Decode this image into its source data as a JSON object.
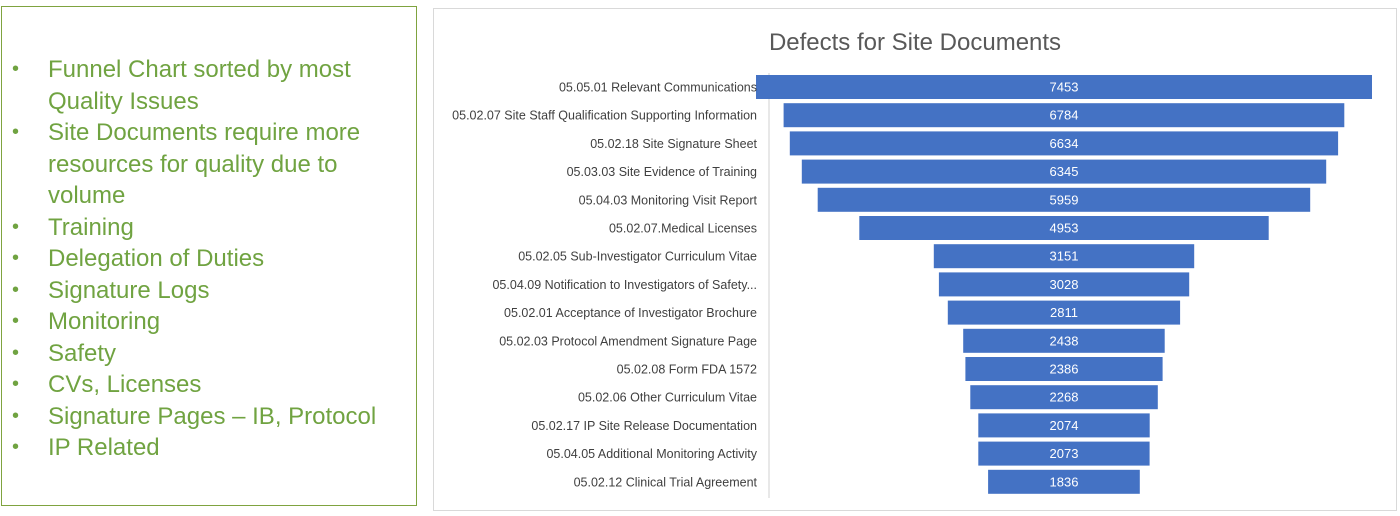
{
  "bullets": [
    "Funnel Chart sorted by most Quality Issues",
    "Site Documents require more resources for quality due to volume",
    "Training",
    "Delegation of Duties",
    "Signature Logs",
    "Monitoring",
    "Safety",
    "CVs,  Licenses",
    "Signature Pages – IB, Protocol",
    "IP Related"
  ],
  "colors": {
    "bullet_text": "#70a341",
    "panel_border": "#7fa33f",
    "bar_fill": "#4472c4"
  },
  "chart_data": {
    "type": "bar",
    "orientation": "horizontal-funnel",
    "title": "Defects for Site Documents",
    "categories": [
      "05.05.01 Relevant Communications",
      "05.02.07 Site Staff Qualification Supporting Information",
      "05.02.18 Site Signature Sheet",
      "05.03.03 Site Evidence of Training",
      "05.04.03 Monitoring Visit Report",
      "05.02.07.Medical Licenses",
      "05.02.05 Sub-Investigator Curriculum Vitae",
      "05.04.09 Notification to Investigators of Safety...",
      "05.02.01 Acceptance of Investigator Brochure",
      "05.02.03 Protocol Amendment Signature Page",
      "05.02.08 Form FDA 1572",
      "05.02.06 Other Curriculum Vitae",
      "05.02.17 IP Site Release Documentation",
      "05.04.05 Additional Monitoring Activity",
      "05.02.12 Clinical Trial Agreement"
    ],
    "values": [
      7453,
      6784,
      6634,
      6345,
      5959,
      4953,
      3151,
      3028,
      2811,
      2438,
      2386,
      2268,
      2074,
      2073,
      1836
    ],
    "data_labels": true,
    "grid": false,
    "legend": "none"
  }
}
